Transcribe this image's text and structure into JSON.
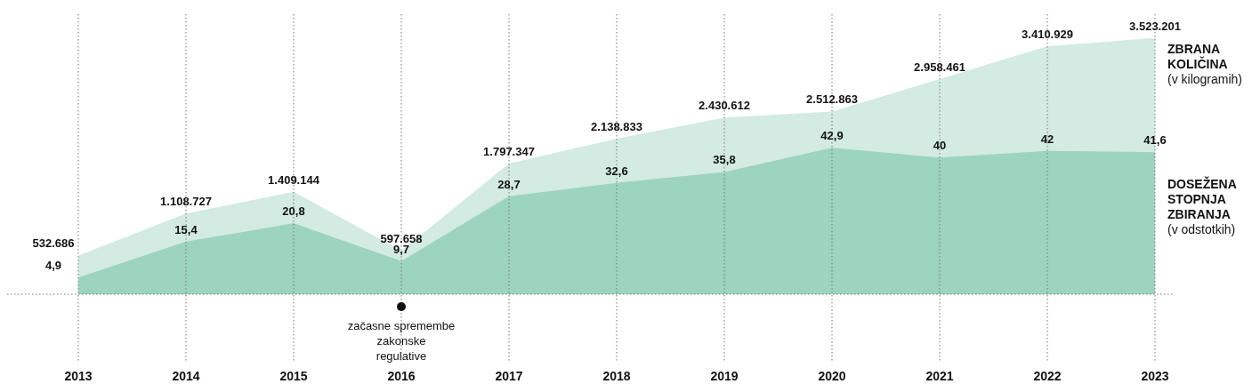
{
  "chart_data": {
    "type": "area",
    "x": [
      2013,
      2014,
      2015,
      2016,
      2017,
      2018,
      2019,
      2020,
      2021,
      2022,
      2023
    ],
    "xlim": [
      2013,
      2023
    ],
    "xticks": [
      2013,
      2014,
      2015,
      2016,
      2017,
      2018,
      2019,
      2020,
      2021,
      2022,
      2023
    ],
    "ylim": [
      0,
      3850000
    ],
    "y2lim": [
      0,
      82
    ],
    "tick_labels": "x",
    "grid": "x",
    "ylabel": "(v kilogramih)",
    "y2label": "(v odstotkih)",
    "series": [
      {
        "name": "ZBRANA KOLIČINA",
        "color": "#d3ebe2",
        "values": [
          532686,
          1108727,
          1409144,
          597658,
          1797347,
          2138833,
          2430612,
          2512863,
          2958461,
          3410929,
          3523201
        ],
        "value_labels": [
          "532.686",
          "1.108.727",
          "1.409.144",
          "597.658",
          "1.797.347",
          "2.138.833",
          "2.430.612",
          "2.512.863",
          "2.958.461",
          "3.410.929",
          "3.523.201"
        ]
      },
      {
        "name": "DOSEŽENA STOPNJA ZBIRANJA",
        "color": "#9dd4bf",
        "axis": "y2",
        "values": [
          4.9,
          15.4,
          20.8,
          9.7,
          28.7,
          32.6,
          35.8,
          42.9,
          40,
          42,
          41.6
        ],
        "value_labels": [
          "4,9",
          "15,4",
          "20,8",
          "9,7",
          "28,7",
          "32,6",
          "35,8",
          "42,9",
          "40",
          "42",
          "41,6"
        ]
      }
    ],
    "annotations": [
      {
        "text": "začasne spremembe zakonske regulative",
        "x": 2016,
        "y": 0
      }
    ]
  }
}
